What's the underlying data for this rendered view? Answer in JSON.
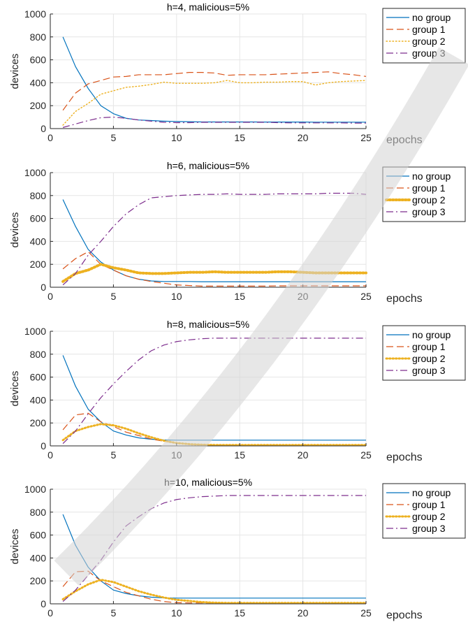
{
  "figure": {
    "colors": {
      "no_group": "#0072BD",
      "group_1": "#D95319",
      "group_2": "#EDB120",
      "group_3": "#7E2F8E",
      "grid": "#e6e6e6",
      "axis": "#262626",
      "watermark": "#d4d4d4"
    }
  },
  "chart_data": [
    {
      "type": "line",
      "title": "h=4, malicious=5%",
      "xlabel": "epochs",
      "ylabel": "devices",
      "xlim": [
        0,
        25
      ],
      "ylim": [
        0,
        1000
      ],
      "xticks": [
        0,
        5,
        10,
        15,
        20,
        25
      ],
      "yticks": [
        0,
        200,
        400,
        600,
        800,
        1000
      ],
      "grid": true,
      "legend_position": "outside-right",
      "x": [
        1,
        2,
        3,
        4,
        5,
        6,
        7,
        8,
        9,
        10,
        11,
        12,
        13,
        14,
        15,
        16,
        17,
        18,
        19,
        20,
        21,
        22,
        23,
        24,
        25
      ],
      "series": [
        {
          "name": "no group",
          "style": "solid",
          "width": 1.2,
          "values": [
            800,
            540,
            350,
            200,
            130,
            90,
            75,
            70,
            65,
            62,
            60,
            58,
            58,
            58,
            58,
            58,
            57,
            57,
            57,
            57,
            56,
            56,
            56,
            56,
            56
          ]
        },
        {
          "name": "group 1",
          "style": "dash",
          "width": 1.2,
          "values": [
            160,
            310,
            390,
            420,
            450,
            455,
            470,
            470,
            470,
            480,
            490,
            490,
            485,
            465,
            470,
            470,
            470,
            475,
            480,
            485,
            490,
            495,
            480,
            470,
            455
          ]
        },
        {
          "name": "group 2",
          "style": "dot",
          "width": 1.4,
          "values": [
            30,
            150,
            220,
            300,
            330,
            360,
            370,
            385,
            405,
            395,
            395,
            395,
            400,
            420,
            400,
            400,
            405,
            405,
            410,
            410,
            380,
            400,
            410,
            415,
            420
          ]
        },
        {
          "name": "group 3",
          "style": "dashdot",
          "width": 1.2,
          "values": [
            10,
            40,
            70,
            95,
            100,
            90,
            75,
            65,
            55,
            52,
            52,
            55,
            55,
            55,
            55,
            55,
            55,
            52,
            50,
            50,
            50,
            50,
            50,
            48,
            48
          ]
        }
      ]
    },
    {
      "type": "line",
      "title": "h=6, malicious=5%",
      "xlabel": "epochs",
      "ylabel": "devices",
      "xlim": [
        0,
        25
      ],
      "ylim": [
        0,
        1000
      ],
      "xticks": [
        0,
        5,
        10,
        15,
        20,
        25
      ],
      "yticks": [
        0,
        200,
        400,
        600,
        800,
        1000
      ],
      "grid": true,
      "legend_position": "outside-right",
      "x": [
        1,
        2,
        3,
        4,
        5,
        6,
        7,
        8,
        9,
        10,
        11,
        12,
        13,
        14,
        15,
        16,
        17,
        18,
        19,
        20,
        21,
        22,
        23,
        24,
        25
      ],
      "series": [
        {
          "name": "no group",
          "style": "solid",
          "width": 1.2,
          "values": [
            765,
            530,
            330,
            220,
            150,
            100,
            70,
            55,
            50,
            50,
            50,
            48,
            48,
            48,
            48,
            48,
            48,
            48,
            48,
            48,
            48,
            48,
            48,
            48,
            48
          ]
        },
        {
          "name": "group 1",
          "style": "dash",
          "width": 1.2,
          "values": [
            160,
            250,
            310,
            200,
            150,
            100,
            70,
            50,
            35,
            20,
            15,
            10,
            10,
            10,
            10,
            10,
            10,
            12,
            12,
            12,
            12,
            12,
            12,
            12,
            12
          ]
        },
        {
          "name": "group 2",
          "style": "dot",
          "width": 4,
          "values": [
            50,
            120,
            150,
            200,
            170,
            150,
            125,
            120,
            120,
            125,
            130,
            130,
            135,
            130,
            130,
            130,
            130,
            135,
            135,
            130,
            125,
            125,
            125,
            125,
            125
          ]
        },
        {
          "name": "group 3",
          "style": "dashdot",
          "width": 1.2,
          "values": [
            20,
            120,
            280,
            400,
            530,
            640,
            720,
            780,
            790,
            800,
            805,
            810,
            810,
            815,
            810,
            810,
            810,
            815,
            815,
            815,
            815,
            820,
            820,
            820,
            810
          ]
        }
      ]
    },
    {
      "type": "line",
      "title": "h=8, malicious=5%",
      "xlabel": "epochs",
      "ylabel": "devices",
      "xlim": [
        0,
        25
      ],
      "ylim": [
        0,
        1000
      ],
      "xticks": [
        0,
        5,
        10,
        15,
        20,
        25
      ],
      "yticks": [
        0,
        200,
        400,
        600,
        800,
        1000
      ],
      "grid": true,
      "legend_position": "outside-right",
      "x": [
        1,
        2,
        3,
        4,
        5,
        6,
        7,
        8,
        9,
        10,
        11,
        12,
        13,
        14,
        15,
        16,
        17,
        18,
        19,
        20,
        21,
        22,
        23,
        24,
        25
      ],
      "series": [
        {
          "name": "no group",
          "style": "solid",
          "width": 1.2,
          "values": [
            790,
            520,
            320,
            210,
            130,
            95,
            70,
            58,
            52,
            50,
            50,
            50,
            50,
            50,
            50,
            50,
            50,
            50,
            50,
            50,
            50,
            50,
            50,
            50,
            50
          ]
        },
        {
          "name": "group 1",
          "style": "dash",
          "width": 1.2,
          "values": [
            140,
            270,
            285,
            210,
            170,
            120,
            90,
            60,
            40,
            25,
            15,
            10,
            8,
            8,
            8,
            8,
            8,
            8,
            8,
            8,
            8,
            8,
            8,
            8,
            8
          ]
        },
        {
          "name": "group 2",
          "style": "dot",
          "width": 3,
          "values": [
            50,
            130,
            165,
            190,
            180,
            150,
            110,
            75,
            45,
            25,
            15,
            10,
            8,
            8,
            8,
            8,
            8,
            8,
            8,
            8,
            8,
            8,
            8,
            8,
            8
          ]
        },
        {
          "name": "group 3",
          "style": "dashdot",
          "width": 1.2,
          "values": [
            20,
            130,
            280,
            420,
            540,
            650,
            750,
            830,
            880,
            910,
            925,
            935,
            940,
            940,
            940,
            940,
            940,
            940,
            940,
            940,
            940,
            940,
            940,
            940,
            940
          ]
        }
      ]
    },
    {
      "type": "line",
      "title": "h=10, malicious=5%",
      "xlabel": "epochs",
      "ylabel": "devices",
      "xlim": [
        0,
        25
      ],
      "ylim": [
        0,
        1000
      ],
      "xticks": [
        0,
        5,
        10,
        15,
        20,
        25
      ],
      "yticks": [
        0,
        200,
        400,
        600,
        800,
        1000
      ],
      "grid": true,
      "legend_position": "outside-right",
      "x": [
        1,
        2,
        3,
        4,
        5,
        6,
        7,
        8,
        9,
        10,
        11,
        12,
        13,
        14,
        15,
        16,
        17,
        18,
        19,
        20,
        21,
        22,
        23,
        24,
        25
      ],
      "series": [
        {
          "name": "no group",
          "style": "solid",
          "width": 1.2,
          "values": [
            780,
            510,
            320,
            200,
            120,
            90,
            70,
            58,
            52,
            50,
            50,
            50,
            50,
            50,
            50,
            50,
            50,
            50,
            50,
            50,
            50,
            50,
            50,
            50,
            50
          ]
        },
        {
          "name": "group 1",
          "style": "dash",
          "width": 1.2,
          "values": [
            150,
            280,
            285,
            200,
            150,
            100,
            70,
            40,
            20,
            10,
            8,
            8,
            8,
            8,
            8,
            8,
            8,
            8,
            8,
            8,
            8,
            8,
            8,
            8,
            8
          ]
        },
        {
          "name": "group 2",
          "style": "dot",
          "width": 3,
          "values": [
            40,
            110,
            170,
            210,
            190,
            150,
            110,
            80,
            55,
            35,
            25,
            15,
            10,
            8,
            8,
            8,
            8,
            8,
            8,
            8,
            8,
            8,
            8,
            8,
            8
          ]
        },
        {
          "name": "group 3",
          "style": "dashdot",
          "width": 1.2,
          "values": [
            20,
            120,
            250,
            380,
            540,
            680,
            760,
            830,
            880,
            910,
            925,
            935,
            940,
            945,
            945,
            945,
            945,
            945,
            945,
            945,
            945,
            945,
            945,
            945,
            945
          ]
        }
      ]
    }
  ]
}
